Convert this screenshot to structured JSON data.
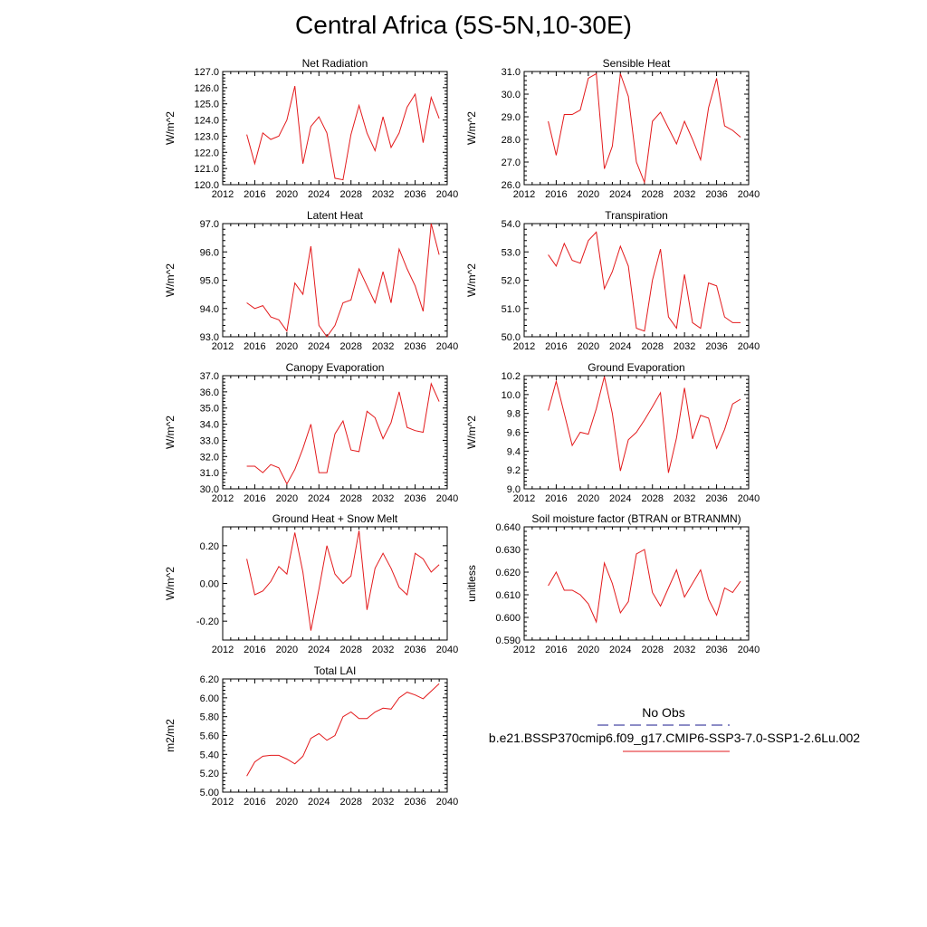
{
  "title": "Central Africa (5S-5N,10-30E)",
  "legend": {
    "entries": [
      {
        "label": "No Obs",
        "color": "#1a1a8c",
        "style": "dashed"
      },
      {
        "label": "b.e21.BSSP370cmip6.f09_g17.CMIP6-SSP3-7.0-SSP1-2.6Lu.002",
        "color": "#e31a1c",
        "style": "solid"
      }
    ]
  },
  "chart_data": [
    {
      "type": "line",
      "title": "Net Radiation",
      "ylabel": "W/m^2",
      "xlim": [
        2012,
        2040
      ],
      "ylim": [
        120,
        127
      ],
      "xticks": [
        2012,
        2016,
        2020,
        2024,
        2028,
        2032,
        2036,
        2040
      ],
      "yticks": [
        "120.0",
        "121.0",
        "122.0",
        "123.0",
        "124.0",
        "125.0",
        "126.0",
        "127.0"
      ],
      "x": [
        2015,
        2016,
        2017,
        2018,
        2019,
        2020,
        2021,
        2022,
        2023,
        2024,
        2025,
        2026,
        2027,
        2028,
        2029,
        2030,
        2031,
        2032,
        2033,
        2034,
        2035,
        2036,
        2037,
        2038,
        2039
      ],
      "series": [
        {
          "values": [
            123.1,
            121.3,
            123.2,
            122.8,
            123.0,
            124.0,
            126.1,
            121.3,
            123.6,
            124.2,
            123.2,
            120.4,
            120.3,
            123.1,
            124.9,
            123.2,
            122.1,
            124.2,
            122.3,
            123.2,
            124.8,
            125.6,
            122.6,
            125.4,
            124.1
          ]
        }
      ]
    },
    {
      "type": "line",
      "title": "Sensible Heat",
      "ylabel": "W/m^2",
      "xlim": [
        2012,
        2040
      ],
      "ylim": [
        26,
        31
      ],
      "xticks": [
        2012,
        2016,
        2020,
        2024,
        2028,
        2032,
        2036,
        2040
      ],
      "yticks": [
        "26.0",
        "27.0",
        "28.0",
        "29.0",
        "30.0",
        "31.0"
      ],
      "x": [
        2015,
        2016,
        2017,
        2018,
        2019,
        2020,
        2021,
        2022,
        2023,
        2024,
        2025,
        2026,
        2027,
        2028,
        2029,
        2030,
        2031,
        2032,
        2033,
        2034,
        2035,
        2036,
        2037,
        2038,
        2039
      ],
      "series": [
        {
          "values": [
            28.8,
            27.3,
            29.1,
            29.1,
            29.3,
            30.7,
            30.9,
            26.7,
            27.7,
            30.9,
            29.9,
            27.0,
            26.1,
            28.8,
            29.2,
            28.5,
            27.8,
            28.8,
            28.0,
            27.1,
            29.4,
            30.7,
            28.6,
            28.4,
            28.1
          ]
        }
      ]
    },
    {
      "type": "line",
      "title": "Latent Heat",
      "ylabel": "W/m^2",
      "xlim": [
        2012,
        2040
      ],
      "ylim": [
        93,
        97
      ],
      "xticks": [
        2012,
        2016,
        2020,
        2024,
        2028,
        2032,
        2036,
        2040
      ],
      "yticks": [
        "93.0",
        "94.0",
        "95.0",
        "96.0",
        "97.0"
      ],
      "x": [
        2015,
        2016,
        2017,
        2018,
        2019,
        2020,
        2021,
        2022,
        2023,
        2024,
        2025,
        2026,
        2027,
        2028,
        2029,
        2030,
        2031,
        2032,
        2033,
        2034,
        2035,
        2036,
        2037,
        2038,
        2039
      ],
      "series": [
        {
          "values": [
            94.2,
            94.0,
            94.1,
            93.7,
            93.6,
            93.2,
            94.9,
            94.5,
            96.2,
            93.4,
            93.0,
            93.4,
            94.2,
            94.3,
            95.4,
            94.8,
            94.2,
            95.3,
            94.2,
            96.1,
            95.4,
            94.8,
            93.9,
            97.0,
            95.9
          ]
        }
      ]
    },
    {
      "type": "line",
      "title": "Transpiration",
      "ylabel": "W/m^2",
      "xlim": [
        2012,
        2040
      ],
      "ylim": [
        50,
        54
      ],
      "xticks": [
        2012,
        2016,
        2020,
        2024,
        2028,
        2032,
        2036,
        2040
      ],
      "yticks": [
        "50.0",
        "51.0",
        "52.0",
        "53.0",
        "54.0"
      ],
      "x": [
        2015,
        2016,
        2017,
        2018,
        2019,
        2020,
        2021,
        2022,
        2023,
        2024,
        2025,
        2026,
        2027,
        2028,
        2029,
        2030,
        2031,
        2032,
        2033,
        2034,
        2035,
        2036,
        2037,
        2038,
        2039
      ],
      "series": [
        {
          "values": [
            52.9,
            52.5,
            53.3,
            52.7,
            52.6,
            53.4,
            53.7,
            51.7,
            52.3,
            53.2,
            52.5,
            50.3,
            50.2,
            52.0,
            53.1,
            50.7,
            50.3,
            52.2,
            50.5,
            50.3,
            51.9,
            51.8,
            50.7,
            50.5,
            50.5
          ]
        }
      ]
    },
    {
      "type": "line",
      "title": "Canopy Evaporation",
      "ylabel": "W/m^2",
      "xlim": [
        2012,
        2040
      ],
      "ylim": [
        30,
        37
      ],
      "xticks": [
        2012,
        2016,
        2020,
        2024,
        2028,
        2032,
        2036,
        2040
      ],
      "yticks": [
        "30.0",
        "31.0",
        "32.0",
        "33.0",
        "34.0",
        "35.0",
        "36.0",
        "37.0"
      ],
      "x": [
        2015,
        2016,
        2017,
        2018,
        2019,
        2020,
        2021,
        2022,
        2023,
        2024,
        2025,
        2026,
        2027,
        2028,
        2029,
        2030,
        2031,
        2032,
        2033,
        2034,
        2035,
        2036,
        2037,
        2038,
        2039
      ],
      "series": [
        {
          "values": [
            31.4,
            31.4,
            31.0,
            31.5,
            31.3,
            30.3,
            31.2,
            32.5,
            34.0,
            31.0,
            31.0,
            33.4,
            34.2,
            32.4,
            32.3,
            34.8,
            34.4,
            33.1,
            34.1,
            36.0,
            33.8,
            33.6,
            33.5,
            36.5,
            35.4
          ]
        }
      ]
    },
    {
      "type": "line",
      "title": "Ground Evaporation",
      "ylabel": "W/m^2",
      "xlim": [
        2012,
        2040
      ],
      "ylim": [
        9.0,
        10.2
      ],
      "xticks": [
        2012,
        2016,
        2020,
        2024,
        2028,
        2032,
        2036,
        2040
      ],
      "yticks": [
        "9.0",
        "9.2",
        "9.4",
        "9.6",
        "9.8",
        "10.0",
        "10.2"
      ],
      "x": [
        2015,
        2016,
        2017,
        2018,
        2019,
        2020,
        2021,
        2022,
        2023,
        2024,
        2025,
        2026,
        2027,
        2028,
        2029,
        2030,
        2031,
        2032,
        2033,
        2034,
        2035,
        2036,
        2037,
        2038,
        2039
      ],
      "series": [
        {
          "values": [
            9.83,
            10.14,
            9.8,
            9.46,
            9.6,
            9.58,
            9.85,
            10.19,
            9.8,
            9.19,
            9.52,
            9.6,
            9.73,
            9.87,
            10.02,
            9.17,
            9.54,
            10.07,
            9.53,
            9.78,
            9.75,
            9.43,
            9.63,
            9.9,
            9.95
          ]
        }
      ]
    },
    {
      "type": "line",
      "title": "Ground Heat + Snow Melt",
      "ylabel": "W/m^2",
      "xlim": [
        2012,
        2040
      ],
      "ylim": [
        -0.3,
        0.3
      ],
      "xticks": [
        2012,
        2016,
        2020,
        2024,
        2028,
        2032,
        2036,
        2040
      ],
      "yticks": [
        "-0.20",
        "0.00",
        "0.20"
      ],
      "ytick_values": [
        -0.2,
        0.0,
        0.2
      ],
      "x": [
        2015,
        2016,
        2017,
        2018,
        2019,
        2020,
        2021,
        2022,
        2023,
        2024,
        2025,
        2026,
        2027,
        2028,
        2029,
        2030,
        2031,
        2032,
        2033,
        2034,
        2035,
        2036,
        2037,
        2038,
        2039
      ],
      "series": [
        {
          "values": [
            0.13,
            -0.06,
            -0.04,
            0.01,
            0.09,
            0.05,
            0.27,
            0.06,
            -0.25,
            -0.03,
            0.2,
            0.05,
            0.0,
            0.04,
            0.28,
            -0.14,
            0.08,
            0.16,
            0.08,
            -0.02,
            -0.06,
            0.16,
            0.13,
            0.06,
            0.1
          ]
        }
      ]
    },
    {
      "type": "line",
      "title": "Soil moisture factor (BTRAN or BTRANMN)",
      "ylabel": "unitless",
      "xlim": [
        2012,
        2040
      ],
      "ylim": [
        0.59,
        0.64
      ],
      "xticks": [
        2012,
        2016,
        2020,
        2024,
        2028,
        2032,
        2036,
        2040
      ],
      "yticks": [
        "0.590",
        "0.600",
        "0.610",
        "0.620",
        "0.630",
        "0.640"
      ],
      "x": [
        2015,
        2016,
        2017,
        2018,
        2019,
        2020,
        2021,
        2022,
        2023,
        2024,
        2025,
        2026,
        2027,
        2028,
        2029,
        2030,
        2031,
        2032,
        2033,
        2034,
        2035,
        2036,
        2037,
        2038,
        2039
      ],
      "series": [
        {
          "values": [
            0.614,
            0.62,
            0.612,
            0.612,
            0.61,
            0.606,
            0.598,
            0.624,
            0.615,
            0.602,
            0.607,
            0.628,
            0.63,
            0.611,
            0.605,
            0.613,
            0.621,
            0.609,
            0.615,
            0.621,
            0.608,
            0.601,
            0.613,
            0.611,
            0.616
          ]
        }
      ]
    },
    {
      "type": "line",
      "title": "Total LAI",
      "ylabel": "m2/m2",
      "xlim": [
        2012,
        2040
      ],
      "ylim": [
        5.0,
        6.2
      ],
      "xticks": [
        2012,
        2016,
        2020,
        2024,
        2028,
        2032,
        2036,
        2040
      ],
      "yticks": [
        "5.00",
        "5.20",
        "5.40",
        "5.60",
        "5.80",
        "6.00",
        "6.20"
      ],
      "x": [
        2015,
        2016,
        2017,
        2018,
        2019,
        2020,
        2021,
        2022,
        2023,
        2024,
        2025,
        2026,
        2027,
        2028,
        2029,
        2030,
        2031,
        2032,
        2033,
        2034,
        2035,
        2036,
        2037,
        2038,
        2039
      ],
      "series": [
        {
          "values": [
            5.17,
            5.32,
            5.38,
            5.39,
            5.39,
            5.35,
            5.3,
            5.38,
            5.57,
            5.62,
            5.55,
            5.6,
            5.8,
            5.85,
            5.78,
            5.78,
            5.85,
            5.89,
            5.88,
            6.0,
            6.06,
            6.03,
            5.99,
            6.07,
            6.15
          ]
        }
      ]
    }
  ]
}
